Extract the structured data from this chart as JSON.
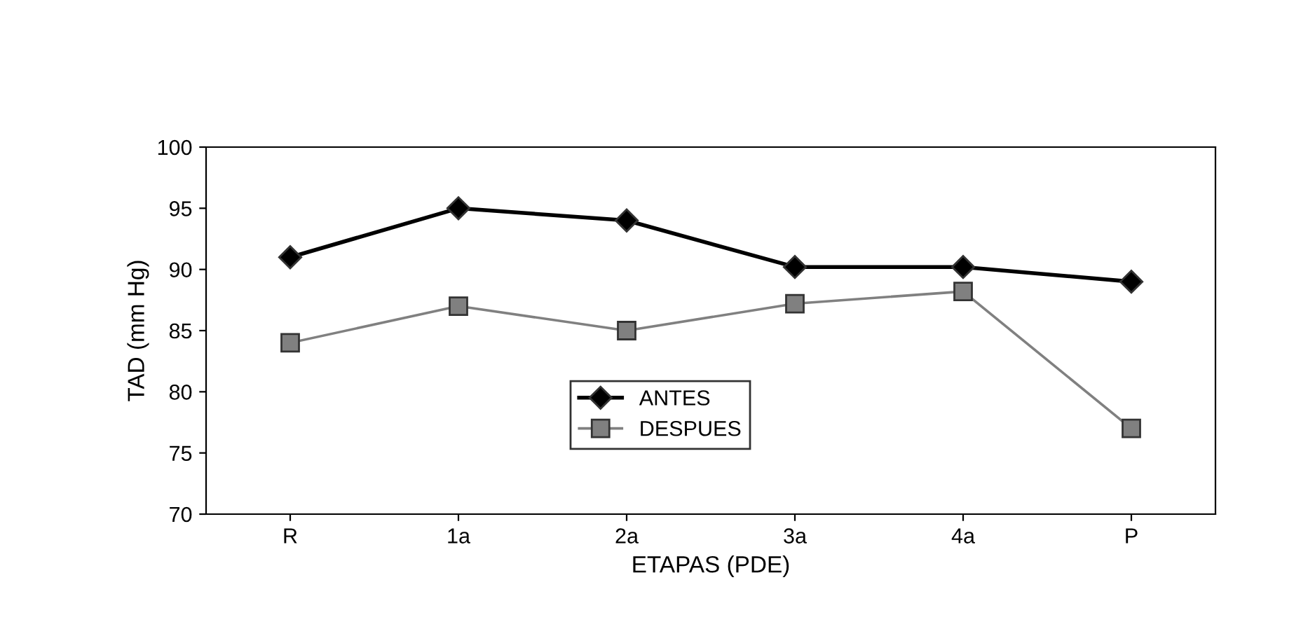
{
  "chart_data": {
    "type": "line",
    "xlabel": "ETAPAS (PDE)",
    "ylabel": "TAD (mm Hg)",
    "categories": [
      "R",
      "1a",
      "2a",
      "3a",
      "4a",
      "P"
    ],
    "series": [
      {
        "name": "ANTES",
        "color": "#000000",
        "marker": "diamond",
        "values": [
          91,
          95,
          94,
          90.2,
          90.2,
          89
        ]
      },
      {
        "name": "DESPUES",
        "color": "#808080",
        "marker": "square",
        "values": [
          84,
          87,
          85,
          87.2,
          88.2,
          77
        ]
      }
    ],
    "ylim": [
      70,
      100
    ],
    "yticks": [
      70,
      75,
      80,
      85,
      90,
      95,
      100
    ],
    "grid": false,
    "legend": "bottom",
    "line_style": "solid"
  }
}
